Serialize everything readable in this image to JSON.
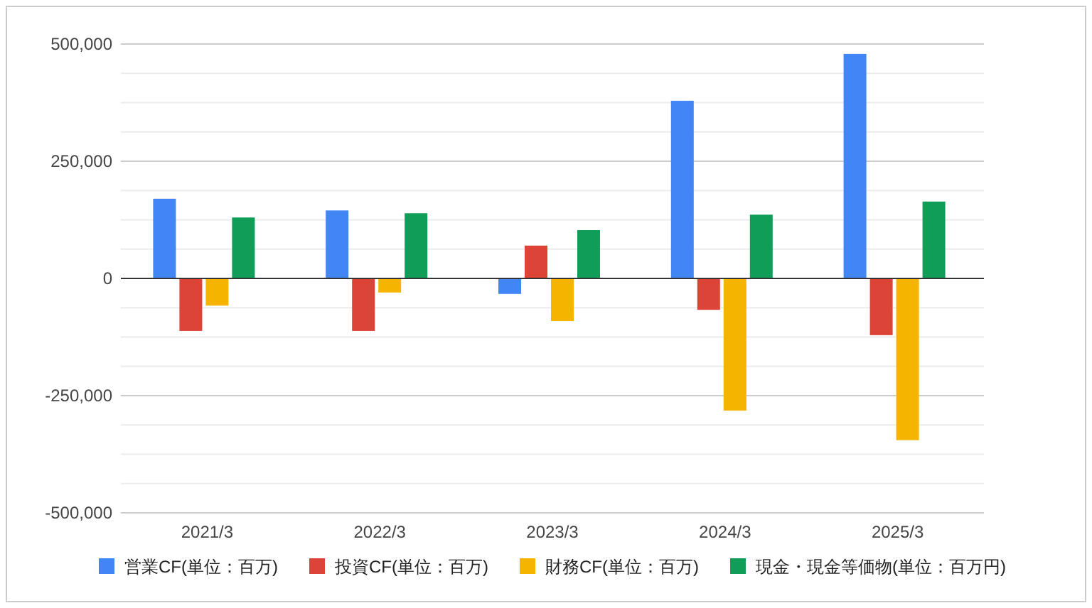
{
  "chart_data": {
    "type": "bar",
    "categories": [
      "2021/3",
      "2022/3",
      "2023/3",
      "2024/3",
      "2025/3"
    ],
    "series": [
      {
        "name": "営業CF(単位：百万)",
        "color": "#4285f4",
        "values": [
          170000,
          145000,
          -33000,
          379000,
          479000
        ]
      },
      {
        "name": "投資CF(単位：百万)",
        "color": "#db4437",
        "values": [
          -112000,
          -112000,
          70000,
          -67000,
          -121000
        ]
      },
      {
        "name": "財務CF(単位：百万)",
        "color": "#f4b400",
        "values": [
          -58000,
          -30000,
          -91000,
          -282000,
          -345000
        ]
      },
      {
        "name": "現金・現金等価物(単位：百万円)",
        "color": "#0f9d58",
        "values": [
          130000,
          139000,
          103000,
          136000,
          164000
        ]
      }
    ],
    "ylim": [
      -500000,
      500000
    ],
    "yticks": [
      {
        "value": -500000,
        "label": "-500,000"
      },
      {
        "value": -437500,
        "label": null
      },
      {
        "value": -375000,
        "label": null
      },
      {
        "value": -312500,
        "label": null
      },
      {
        "value": -250000,
        "label": "-250,000"
      },
      {
        "value": -187500,
        "label": null
      },
      {
        "value": -125000,
        "label": null
      },
      {
        "value": -62500,
        "label": null
      },
      0,
      {
        "value": 62500,
        "label": null
      },
      {
        "value": 125000,
        "label": null
      },
      {
        "value": 187500,
        "label": null
      },
      {
        "value": 250000,
        "label": "250,000"
      },
      {
        "value": 312500,
        "label": null
      },
      {
        "value": 375000,
        "label": null
      },
      {
        "value": 437500,
        "label": null
      },
      {
        "value": 500000,
        "label": "500,000"
      }
    ],
    "grid": "y",
    "legend": "bottom"
  }
}
